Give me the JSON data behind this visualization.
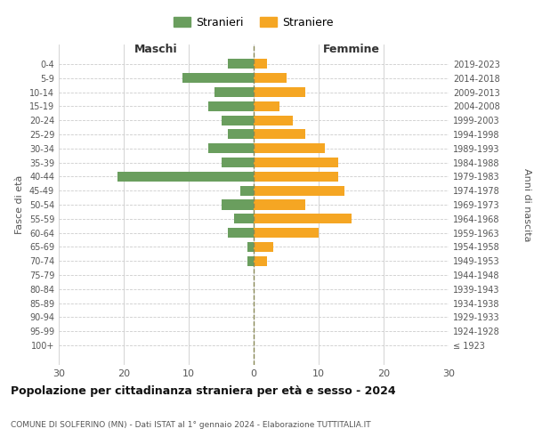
{
  "age_groups": [
    "100+",
    "95-99",
    "90-94",
    "85-89",
    "80-84",
    "75-79",
    "70-74",
    "65-69",
    "60-64",
    "55-59",
    "50-54",
    "45-49",
    "40-44",
    "35-39",
    "30-34",
    "25-29",
    "20-24",
    "15-19",
    "10-14",
    "5-9",
    "0-4"
  ],
  "birth_years": [
    "≤ 1923",
    "1924-1928",
    "1929-1933",
    "1934-1938",
    "1939-1943",
    "1944-1948",
    "1949-1953",
    "1954-1958",
    "1959-1963",
    "1964-1968",
    "1969-1973",
    "1974-1978",
    "1979-1983",
    "1984-1988",
    "1989-1993",
    "1994-1998",
    "1999-2003",
    "2004-2008",
    "2009-2013",
    "2014-2018",
    "2019-2023"
  ],
  "males": [
    0,
    0,
    0,
    0,
    0,
    0,
    1,
    1,
    4,
    3,
    5,
    2,
    21,
    5,
    7,
    4,
    5,
    7,
    6,
    11,
    4
  ],
  "females": [
    0,
    0,
    0,
    0,
    0,
    0,
    2,
    3,
    10,
    15,
    8,
    14,
    13,
    13,
    11,
    8,
    6,
    4,
    8,
    5,
    2
  ],
  "male_color": "#6a9e5e",
  "female_color": "#f5a623",
  "title": "Popolazione per cittadinanza straniera per età e sesso - 2024",
  "subtitle": "COMUNE DI SOLFERINO (MN) - Dati ISTAT al 1° gennaio 2024 - Elaborazione TUTTITALIA.IT",
  "xlabel_left": "Maschi",
  "xlabel_right": "Femmine",
  "ylabel_left": "Fasce di età",
  "ylabel_right": "Anni di nascita",
  "legend_male": "Stranieri",
  "legend_female": "Straniere",
  "xlim": 30,
  "background_color": "#ffffff",
  "grid_color": "#cccccc",
  "bar_height": 0.7
}
